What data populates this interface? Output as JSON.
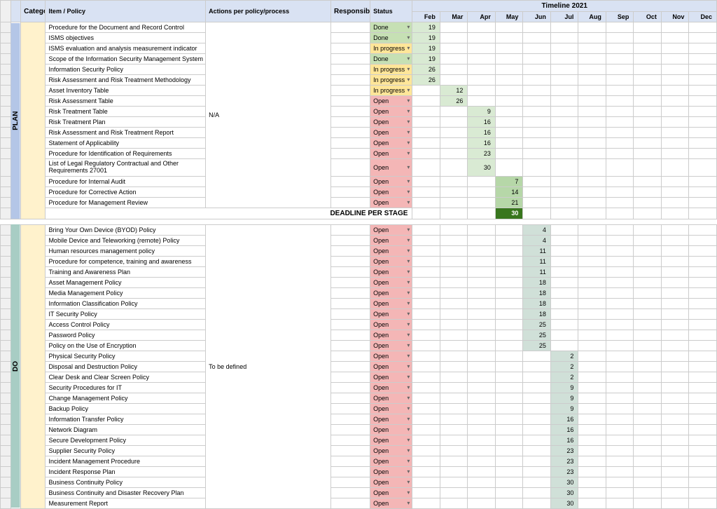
{
  "headers": {
    "category": "Category",
    "item": "Item / Policy",
    "actions": "Actions per policy/process",
    "responsible": "Responsible",
    "status": "Status",
    "timeline": "Timeline 2021",
    "months": [
      "Feb",
      "Mar",
      "Apr",
      "May",
      "Jun",
      "Jul",
      "Aug",
      "Sep",
      "Oct",
      "Nov",
      "Dec"
    ]
  },
  "status_labels": {
    "done": "Done",
    "inprogress": "In progress",
    "open": "Open"
  },
  "status_colors": {
    "done": "#c6e0b4",
    "inprogress": "#ffe699",
    "open": "#f4b6b6"
  },
  "highlight_colors": {
    "light": "#d9ead3",
    "med": "#b6d7a8",
    "dark": "#38761d",
    "teal": "#d0e0d8"
  },
  "phases": [
    {
      "name": "PLAN",
      "bg": "#b4c6e7",
      "actions_label": "N/A",
      "rows": [
        {
          "item": "Procedure for the Document and Record Control",
          "status": "done",
          "month": "Feb",
          "day": "19",
          "hl": "light"
        },
        {
          "item": "ISMS objectives",
          "status": "done",
          "month": "Feb",
          "day": "19",
          "hl": "light"
        },
        {
          "item": "ISMS evaluation and analysis measurement indicator",
          "status": "inprogress",
          "month": "Feb",
          "day": "19",
          "hl": "light"
        },
        {
          "item": "Scope of the Information Security Management System",
          "status": "done",
          "month": "Feb",
          "day": "19",
          "hl": "light"
        },
        {
          "item": "Information Security Policy",
          "status": "inprogress",
          "month": "Feb",
          "day": "26",
          "hl": "light"
        },
        {
          "item": "Risk Assessment and Risk Treatment Methodology",
          "status": "inprogress",
          "month": "Feb",
          "day": "26",
          "hl": "light"
        },
        {
          "item": "Asset Inventory Table",
          "status": "inprogress",
          "month": "Mar",
          "day": "12",
          "hl": "light"
        },
        {
          "item": "Risk Assessment Table",
          "status": "open",
          "month": "Mar",
          "day": "26",
          "hl": "light"
        },
        {
          "item": "Risk Treatment Table",
          "status": "open",
          "month": "Apr",
          "day": "9",
          "hl": "light"
        },
        {
          "item": "Risk Treatment Plan",
          "status": "open",
          "month": "Apr",
          "day": "16",
          "hl": "light"
        },
        {
          "item": "Risk Assessment and Risk Treatment Report",
          "status": "open",
          "month": "Apr",
          "day": "16",
          "hl": "light"
        },
        {
          "item": "Statement of Applicability",
          "status": "open",
          "month": "Apr",
          "day": "16",
          "hl": "light"
        },
        {
          "item": "Procedure for Identification of Requirements",
          "status": "open",
          "month": "Apr",
          "day": "23",
          "hl": "light"
        },
        {
          "item": "List of Legal Regulatory Contractual and Other Requirements 27001",
          "status": "open",
          "month": "Apr",
          "day": "30",
          "hl": "light",
          "wrap": true
        },
        {
          "item": "Procedure for Internal Audit",
          "status": "open",
          "month": "May",
          "day": "7",
          "hl": "med"
        },
        {
          "item": "Procedure for Corrective Action",
          "status": "open",
          "month": "May",
          "day": "14",
          "hl": "med"
        },
        {
          "item": "Procedure for Management Review",
          "status": "open",
          "month": "May",
          "day": "21",
          "hl": "med"
        }
      ],
      "deadline": {
        "label": "DEADLINE PER STAGE",
        "month": "May",
        "day": "30",
        "hl": "dark"
      }
    },
    {
      "name": "DO",
      "bg": "#a8cdc4",
      "actions_label": "To be defined",
      "rows": [
        {
          "item": "Bring Your Own Device (BYOD) Policy",
          "status": "open",
          "month": "Jun",
          "day": "4",
          "hl": "teal"
        },
        {
          "item": "Mobile Device and Teleworking (remote) Policy",
          "status": "open",
          "month": "Jun",
          "day": "4",
          "hl": "teal"
        },
        {
          "item": "Human resources management policy",
          "status": "open",
          "month": "Jun",
          "day": "11",
          "hl": "teal"
        },
        {
          "item": "Procedure for competence, training and awareness",
          "status": "open",
          "month": "Jun",
          "day": "11",
          "hl": "teal"
        },
        {
          "item": "Training and Awareness Plan",
          "status": "open",
          "month": "Jun",
          "day": "11",
          "hl": "teal"
        },
        {
          "item": "Asset Management Policy",
          "status": "open",
          "month": "Jun",
          "day": "18",
          "hl": "teal"
        },
        {
          "item": "Media Management Policy",
          "status": "open",
          "month": "Jun",
          "day": "18",
          "hl": "teal"
        },
        {
          "item": "Information Classification Policy",
          "status": "open",
          "month": "Jun",
          "day": "18",
          "hl": "teal"
        },
        {
          "item": "IT Security Policy",
          "status": "open",
          "month": "Jun",
          "day": "18",
          "hl": "teal"
        },
        {
          "item": "Access Control Policy",
          "status": "open",
          "month": "Jun",
          "day": "25",
          "hl": "teal"
        },
        {
          "item": "Password Policy",
          "status": "open",
          "month": "Jun",
          "day": "25",
          "hl": "teal"
        },
        {
          "item": "Policy on the Use of Encryption",
          "status": "open",
          "month": "Jun",
          "day": "25",
          "hl": "teal"
        },
        {
          "item": "Physical Security Policy",
          "status": "open",
          "month": "Jul",
          "day": "2",
          "hl": "teal"
        },
        {
          "item": "Disposal and Destruction Policy",
          "status": "open",
          "month": "Jul",
          "day": "2",
          "hl": "teal"
        },
        {
          "item": "Clear Desk and Clear Screen Policy",
          "status": "open",
          "month": "Jul",
          "day": "2",
          "hl": "teal"
        },
        {
          "item": "Security Procedures for IT",
          "status": "open",
          "month": "Jul",
          "day": "9",
          "hl": "teal"
        },
        {
          "item": "Change Management Policy",
          "status": "open",
          "month": "Jul",
          "day": "9",
          "hl": "teal"
        },
        {
          "item": "Backup Policy",
          "status": "open",
          "month": "Jul",
          "day": "9",
          "hl": "teal"
        },
        {
          "item": "Information Transfer Policy",
          "status": "open",
          "month": "Jul",
          "day": "16",
          "hl": "teal"
        },
        {
          "item": "Network Diagram",
          "status": "open",
          "month": "Jul",
          "day": "16",
          "hl": "teal"
        },
        {
          "item": "Secure Development Policy",
          "status": "open",
          "month": "Jul",
          "day": "16",
          "hl": "teal"
        },
        {
          "item": "Supplier Security Policy",
          "status": "open",
          "month": "Jul",
          "day": "23",
          "hl": "teal"
        },
        {
          "item": "Incident Management Procedure",
          "status": "open",
          "month": "Jul",
          "day": "23",
          "hl": "teal"
        },
        {
          "item": "Incident Response Plan",
          "status": "open",
          "month": "Jul",
          "day": "23",
          "hl": "teal"
        },
        {
          "item": "Business Continuity Policy",
          "status": "open",
          "month": "Jul",
          "day": "30",
          "hl": "teal"
        },
        {
          "item": "Business Continuity and Disaster Recovery Plan",
          "status": "open",
          "month": "Jul",
          "day": "30",
          "hl": "teal"
        },
        {
          "item": "Measurement Report",
          "status": "open",
          "month": "Jul",
          "day": "30",
          "hl": "teal"
        }
      ]
    }
  ]
}
